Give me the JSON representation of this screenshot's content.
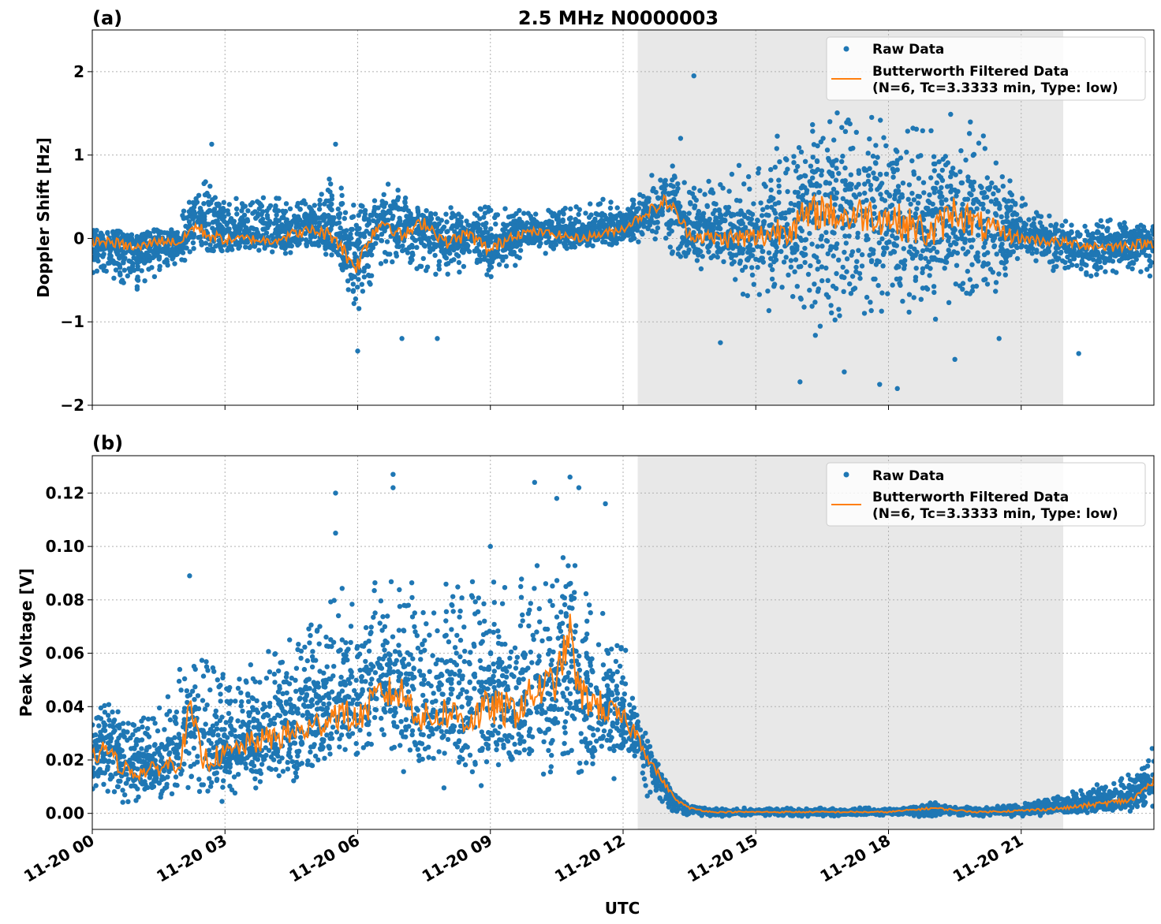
{
  "figure": {
    "title": "2.5 MHz N0000003",
    "xlabel": "UTC"
  },
  "colors": {
    "raw": "#1f77b4",
    "filtered": "#ff7f0e",
    "shade": "#e8e8e8",
    "grid": "#b0b0b0"
  },
  "chart_data": [
    {
      "type": "scatter",
      "panel_label": "(a)",
      "ylabel": "Doppler Shift [Hz]",
      "xlim_hours": [
        0,
        24
      ],
      "ylim": [
        -2,
        2.5
      ],
      "yticks": [
        -2,
        -1,
        0,
        1,
        2
      ],
      "ytick_labels": [
        "−2",
        "−1",
        "0",
        "1",
        "2"
      ],
      "xticks_hours": [
        0,
        3,
        6,
        9,
        12,
        15,
        18,
        21
      ],
      "xtick_labels": [
        "11-20 00",
        "11-20 03",
        "11-20 06",
        "11-20 09",
        "11-20 12",
        "11-20 15",
        "11-20 18",
        "11-20 21"
      ],
      "shaded_region_hours": [
        12.33,
        21.95
      ],
      "grid": true,
      "legend": {
        "location": "top-right",
        "raw_label": "Raw Data",
        "filtered_label_1": "Butterworth Filtered Data",
        "filtered_label_2": "(N=6, Tc=3.3333 min, Type: low)"
      },
      "series": [
        {
          "name": "Butterworth Filtered Data",
          "x": [
            0,
            0.5,
            1,
            1.5,
            2,
            2.3,
            2.6,
            3,
            3.5,
            4,
            4.5,
            5,
            5.5,
            5.8,
            6,
            6.3,
            6.6,
            7,
            7.5,
            8,
            8.5,
            9,
            9.5,
            10,
            10.5,
            11,
            11.5,
            12,
            12.5,
            13,
            13.5,
            14,
            15,
            16,
            16.5,
            17,
            17.5,
            18,
            18.5,
            19,
            19.5,
            20,
            21,
            22,
            22.5,
            23,
            24
          ],
          "y": [
            -0.03,
            -0.05,
            -0.12,
            -0.02,
            -0.05,
            0.15,
            0.05,
            -0.02,
            0.0,
            -0.03,
            0.05,
            0.1,
            0.02,
            -0.25,
            -0.32,
            0.05,
            0.22,
            0.02,
            0.2,
            -0.05,
            0.05,
            -0.15,
            0.05,
            0.08,
            0.05,
            0.0,
            0.05,
            0.12,
            0.3,
            0.45,
            0.05,
            0.0,
            0.0,
            0.2,
            0.35,
            0.25,
            0.3,
            0.25,
            0.15,
            0.05,
            0.35,
            0.15,
            0.0,
            -0.05,
            -0.08,
            -0.1,
            -0.05
          ]
        },
        {
          "name": "Raw Data",
          "envelope_x": [
            0,
            1,
            2,
            2.5,
            3,
            4,
            5,
            5.5,
            6,
            6.5,
            7,
            8,
            9,
            10,
            11,
            12,
            12.5,
            13,
            13.5,
            14,
            15,
            16,
            17,
            18,
            19,
            20,
            21,
            22,
            23,
            24
          ],
          "envelope_low": [
            -0.4,
            -0.65,
            -0.3,
            -0.15,
            -0.15,
            -0.15,
            -0.2,
            -0.3,
            -0.95,
            -0.3,
            -0.4,
            -0.45,
            -0.5,
            -0.2,
            -0.15,
            -0.1,
            0.0,
            -0.2,
            -0.3,
            -0.35,
            -0.8,
            -1.1,
            -1.05,
            -1.0,
            -0.95,
            -0.9,
            -0.2,
            -0.45,
            -0.5,
            -0.45
          ],
          "envelope_high": [
            0.2,
            0.1,
            0.25,
            0.85,
            0.45,
            0.5,
            0.55,
            0.8,
            0.35,
            0.8,
            0.5,
            0.4,
            0.45,
            0.35,
            0.4,
            0.5,
            0.7,
            0.95,
            0.6,
            0.75,
            0.95,
            1.45,
            1.5,
            1.5,
            1.45,
            1.4,
            0.5,
            0.2,
            0.25,
            0.2
          ],
          "outliers": [
            [
              2.7,
              1.13
            ],
            [
              5.5,
              1.13
            ],
            [
              6.0,
              -1.35
            ],
            [
              7.0,
              -1.2
            ],
            [
              7.8,
              -1.2
            ],
            [
              13.6,
              1.95
            ],
            [
              13.3,
              1.2
            ],
            [
              14.2,
              -1.25
            ],
            [
              16.0,
              -1.72
            ],
            [
              17.0,
              -1.6
            ],
            [
              17.8,
              -1.75
            ],
            [
              18.2,
              -1.8
            ],
            [
              19.5,
              -1.45
            ],
            [
              20.5,
              -1.2
            ],
            [
              22.3,
              -1.38
            ]
          ]
        }
      ]
    },
    {
      "type": "scatter",
      "panel_label": "(b)",
      "ylabel": "Peak Voltage [V]",
      "xlim_hours": [
        0,
        24
      ],
      "ylim": [
        -0.006,
        0.134
      ],
      "yticks": [
        0.0,
        0.02,
        0.04,
        0.06,
        0.08,
        0.1,
        0.12
      ],
      "ytick_labels": [
        "0.00",
        "0.02",
        "0.04",
        "0.06",
        "0.08",
        "0.10",
        "0.12"
      ],
      "xticks_hours": [
        0,
        3,
        6,
        9,
        12,
        15,
        18,
        21
      ],
      "xtick_labels": [
        "11-20 00",
        "11-20 03",
        "11-20 06",
        "11-20 09",
        "11-20 12",
        "11-20 15",
        "11-20 18",
        "11-20 21"
      ],
      "shaded_region_hours": [
        12.33,
        21.95
      ],
      "grid": true,
      "legend": {
        "location": "top-right",
        "raw_label": "Raw Data",
        "filtered_label_1": "Butterworth Filtered Data",
        "filtered_label_2": "(N=6, Tc=3.3333 min, Type: low)"
      },
      "series": [
        {
          "name": "Butterworth Filtered Data",
          "x": [
            0,
            0.3,
            0.6,
            1,
            1.5,
            2,
            2.2,
            2.5,
            3,
            3.5,
            4,
            4.5,
            5,
            5.5,
            6,
            6.5,
            7,
            7.5,
            8,
            8.5,
            9,
            9.5,
            10,
            10.5,
            10.8,
            11,
            11.5,
            12,
            12.3,
            12.6,
            12.9,
            13.2,
            13.5,
            14,
            15,
            16,
            17,
            18,
            19,
            20,
            21,
            22,
            22.5,
            23,
            23.5,
            24
          ],
          "y": [
            0.02,
            0.025,
            0.018,
            0.015,
            0.017,
            0.02,
            0.04,
            0.02,
            0.022,
            0.026,
            0.028,
            0.03,
            0.032,
            0.038,
            0.035,
            0.045,
            0.045,
            0.035,
            0.038,
            0.035,
            0.04,
            0.038,
            0.045,
            0.05,
            0.068,
            0.045,
            0.04,
            0.035,
            0.03,
            0.02,
            0.012,
            0.005,
            0.002,
            0.0005,
            0.0005,
            0.0005,
            0.0005,
            0.0005,
            0.002,
            0.0005,
            0.001,
            0.002,
            0.003,
            0.004,
            0.005,
            0.012
          ]
        },
        {
          "name": "Raw Data",
          "envelope_x": [
            0,
            0.5,
            1,
            1.5,
            2,
            2.5,
            3,
            3.5,
            4,
            4.5,
            5,
            5.5,
            6,
            6.5,
            7,
            7.5,
            8,
            8.5,
            9,
            9.5,
            10,
            10.5,
            11,
            11.5,
            12,
            12.3,
            12.6,
            12.9,
            13.2,
            13.5,
            14,
            15,
            16,
            17,
            18,
            19,
            20,
            21,
            22,
            22.5,
            23,
            23.5,
            24
          ],
          "envelope_low": [
            0.004,
            0.005,
            0.005,
            0.006,
            0.006,
            0.007,
            0.006,
            0.007,
            0.008,
            0.01,
            0.012,
            0.015,
            0.02,
            0.02,
            0.015,
            0.015,
            0.012,
            0.01,
            0.012,
            0.01,
            0.012,
            0.012,
            0.012,
            0.012,
            0.015,
            0.01,
            0.006,
            0.003,
            0.0,
            -0.001,
            -0.001,
            -0.001,
            -0.001,
            -0.001,
            -0.001,
            -0.001,
            -0.001,
            -0.001,
            0.0,
            0.0,
            0.001,
            0.001,
            0.002
          ],
          "envelope_high": [
            0.045,
            0.04,
            0.035,
            0.04,
            0.055,
            0.06,
            0.05,
            0.055,
            0.065,
            0.07,
            0.075,
            0.085,
            0.08,
            0.09,
            0.09,
            0.085,
            0.085,
            0.09,
            0.09,
            0.09,
            0.095,
            0.095,
            0.095,
            0.08,
            0.065,
            0.045,
            0.03,
            0.015,
            0.006,
            0.003,
            0.002,
            0.002,
            0.002,
            0.002,
            0.002,
            0.004,
            0.002,
            0.004,
            0.007,
            0.01,
            0.012,
            0.015,
            0.025
          ],
          "outliers": [
            [
              2.2,
              0.089
            ],
            [
              5.5,
              0.12
            ],
            [
              5.5,
              0.105
            ],
            [
              6.8,
              0.127
            ],
            [
              6.8,
              0.122
            ],
            [
              9.0,
              0.1
            ],
            [
              10.0,
              0.124
            ],
            [
              10.5,
              0.118
            ],
            [
              10.8,
              0.126
            ],
            [
              11.0,
              0.122
            ],
            [
              11.6,
              0.116
            ]
          ]
        }
      ]
    }
  ]
}
